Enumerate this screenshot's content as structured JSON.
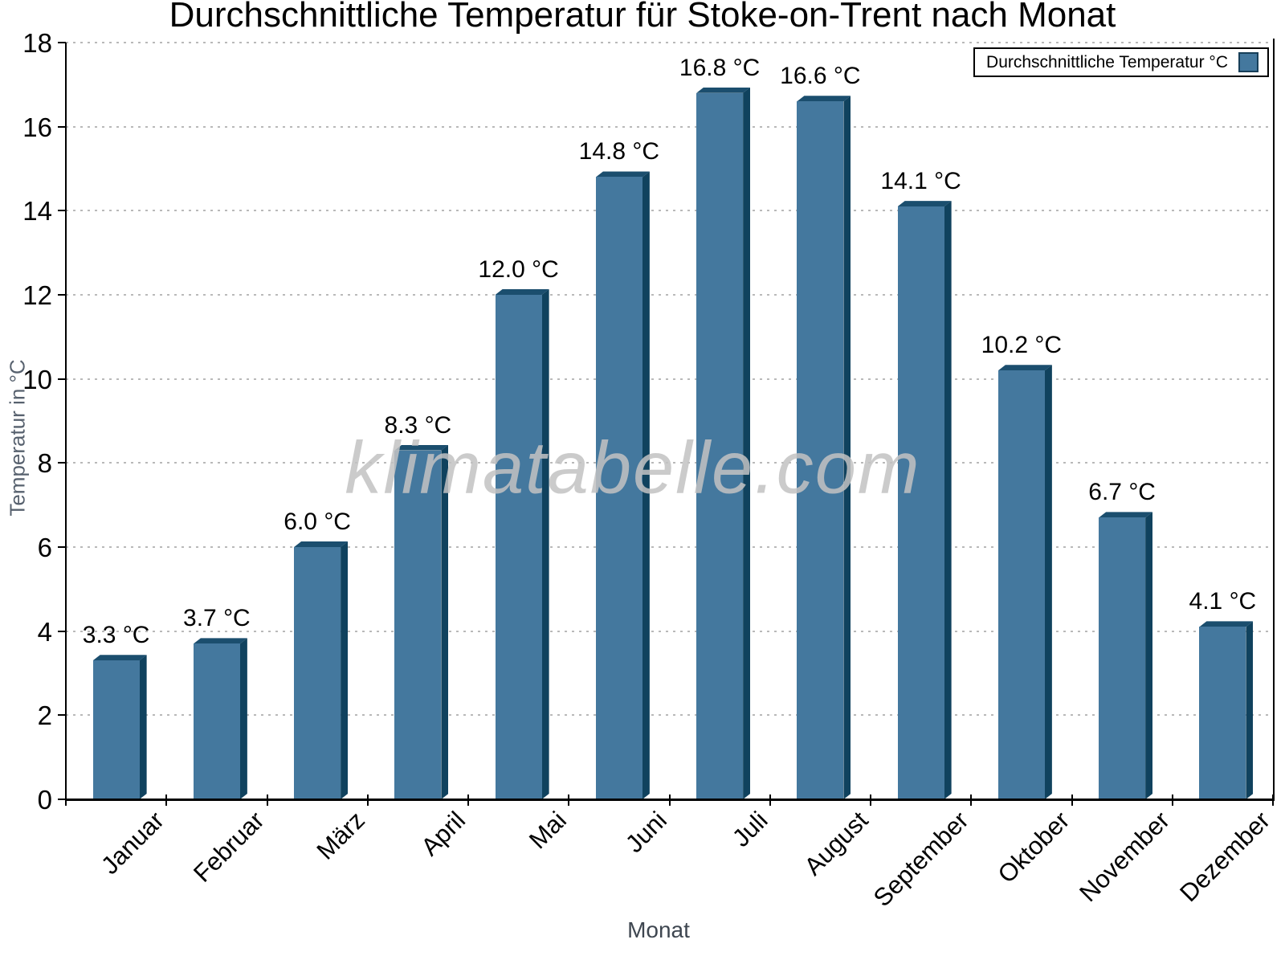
{
  "watermark": "klimatabelle.com",
  "chart_data": {
    "type": "bar",
    "title": "Durchschnittliche Temperatur für Stoke-on-Trent nach Monat",
    "xlabel": "Monat",
    "ylabel": "Temperatur in °C",
    "series_name": "Durchschnittliche Temperatur °C",
    "categories": [
      "Januar",
      "Februar",
      "März",
      "April",
      "Mai",
      "Juni",
      "Juli",
      "August",
      "September",
      "Oktober",
      "November",
      "Dezember"
    ],
    "values": [
      3.3,
      3.7,
      6.0,
      8.3,
      12.0,
      14.8,
      16.8,
      16.6,
      14.1,
      10.2,
      6.7,
      4.1
    ],
    "value_labels": [
      "3.3 °C",
      "3.7 °C",
      "6.0 °C",
      "8.3 °C",
      "12.0 °C",
      "14.8 °C",
      "16.8 °C",
      "16.6 °C",
      "14.1 °C",
      "10.2 °C",
      "6.7 °C",
      "4.1 °C"
    ],
    "ylim": [
      0,
      18
    ],
    "ytick_step": 2,
    "ytick_labels": [
      "0",
      "2",
      "4",
      "6",
      "8",
      "10",
      "12",
      "14",
      "16",
      "18"
    ],
    "grid": "horizontal-dotted",
    "legend_position": "top-right",
    "colors": {
      "bar_front": "#44789e",
      "bar_top": "#1b4e6e",
      "bar_side": "#10425e",
      "swatch_border": "#173f59",
      "grid": "#b9b9b9",
      "axis": "#000000",
      "y_axis_title": "#57616e",
      "x_axis_title": "#3e4650",
      "watermark_color": "#c3c3c3",
      "text": "#000000"
    }
  }
}
